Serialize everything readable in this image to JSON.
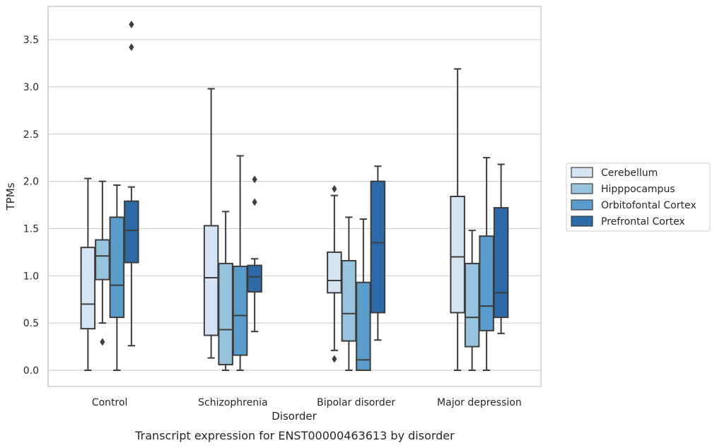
{
  "chart_data": {
    "type": "box",
    "xlabel": "Disorder",
    "ylabel": "TPMs",
    "caption": "Transcript expression for ENST00000463613 by disorder",
    "ylim": [
      -0.18,
      3.85
    ],
    "yticks": [
      "0.0",
      "0.5",
      "1.0",
      "1.5",
      "2.0",
      "2.5",
      "3.0",
      "3.5"
    ],
    "grid": "horizontal",
    "legend_position": "right",
    "categories": [
      "Control",
      "Schizophrenia",
      "Bipolar disorder",
      "Major depression"
    ],
    "series": [
      {
        "name": "Cerebellum",
        "color": "#d4e4f3",
        "boxes": [
          {
            "whisker_low": 0.0,
            "q1": 0.44,
            "median": 0.7,
            "q3": 1.3,
            "whisker_high": 2.03,
            "outliers": []
          },
          {
            "whisker_low": 0.13,
            "q1": 0.37,
            "median": 0.98,
            "q3": 1.53,
            "whisker_high": 2.98,
            "outliers": []
          },
          {
            "whisker_low": 0.21,
            "q1": 0.82,
            "median": 0.95,
            "q3": 1.25,
            "whisker_high": 1.85,
            "outliers": [
              0.12,
              1.92
            ]
          },
          {
            "whisker_low": 0.0,
            "q1": 0.61,
            "median": 1.2,
            "q3": 1.84,
            "whisker_high": 3.19,
            "outliers": []
          }
        ]
      },
      {
        "name": "Hipppocampus",
        "color": "#98c3dd",
        "boxes": [
          {
            "whisker_low": 0.5,
            "q1": 0.96,
            "median": 1.21,
            "q3": 1.38,
            "whisker_high": 2.0,
            "outliers": [
              0.3
            ]
          },
          {
            "whisker_low": 0.0,
            "q1": 0.06,
            "median": 0.43,
            "q3": 1.13,
            "whisker_high": 1.68,
            "outliers": []
          },
          {
            "whisker_low": 0.0,
            "q1": 0.31,
            "median": 0.6,
            "q3": 1.16,
            "whisker_high": 1.62,
            "outliers": []
          },
          {
            "whisker_low": 0.0,
            "q1": 0.25,
            "median": 0.56,
            "q3": 1.13,
            "whisker_high": 1.48,
            "outliers": []
          }
        ]
      },
      {
        "name": "Orbitofontal Cortex",
        "color": "#5a9dcb",
        "boxes": [
          {
            "whisker_low": 0.0,
            "q1": 0.56,
            "median": 0.9,
            "q3": 1.62,
            "whisker_high": 1.96,
            "outliers": []
          },
          {
            "whisker_low": 0.0,
            "q1": 0.16,
            "median": 0.58,
            "q3": 1.1,
            "whisker_high": 2.27,
            "outliers": []
          },
          {
            "whisker_low": 0.0,
            "q1": 0.0,
            "median": 0.11,
            "q3": 0.93,
            "whisker_high": 1.6,
            "outliers": []
          },
          {
            "whisker_low": 0.0,
            "q1": 0.42,
            "median": 0.68,
            "q3": 1.42,
            "whisker_high": 2.25,
            "outliers": []
          }
        ]
      },
      {
        "name": "Prefrontal Cortex",
        "color": "#2d6ba8",
        "boxes": [
          {
            "whisker_low": 0.26,
            "q1": 1.14,
            "median": 1.48,
            "q3": 1.79,
            "whisker_high": 1.94,
            "outliers": [
              3.42,
              3.66
            ]
          },
          {
            "whisker_low": 0.41,
            "q1": 0.83,
            "median": 0.99,
            "q3": 1.11,
            "whisker_high": 1.18,
            "outliers": [
              1.78,
              2.02
            ]
          },
          {
            "whisker_low": 0.32,
            "q1": 0.61,
            "median": 1.35,
            "q3": 2.0,
            "whisker_high": 2.16,
            "outliers": []
          },
          {
            "whisker_low": 0.39,
            "q1": 0.56,
            "median": 0.82,
            "q3": 1.72,
            "whisker_high": 2.18,
            "outliers": []
          }
        ]
      }
    ]
  }
}
